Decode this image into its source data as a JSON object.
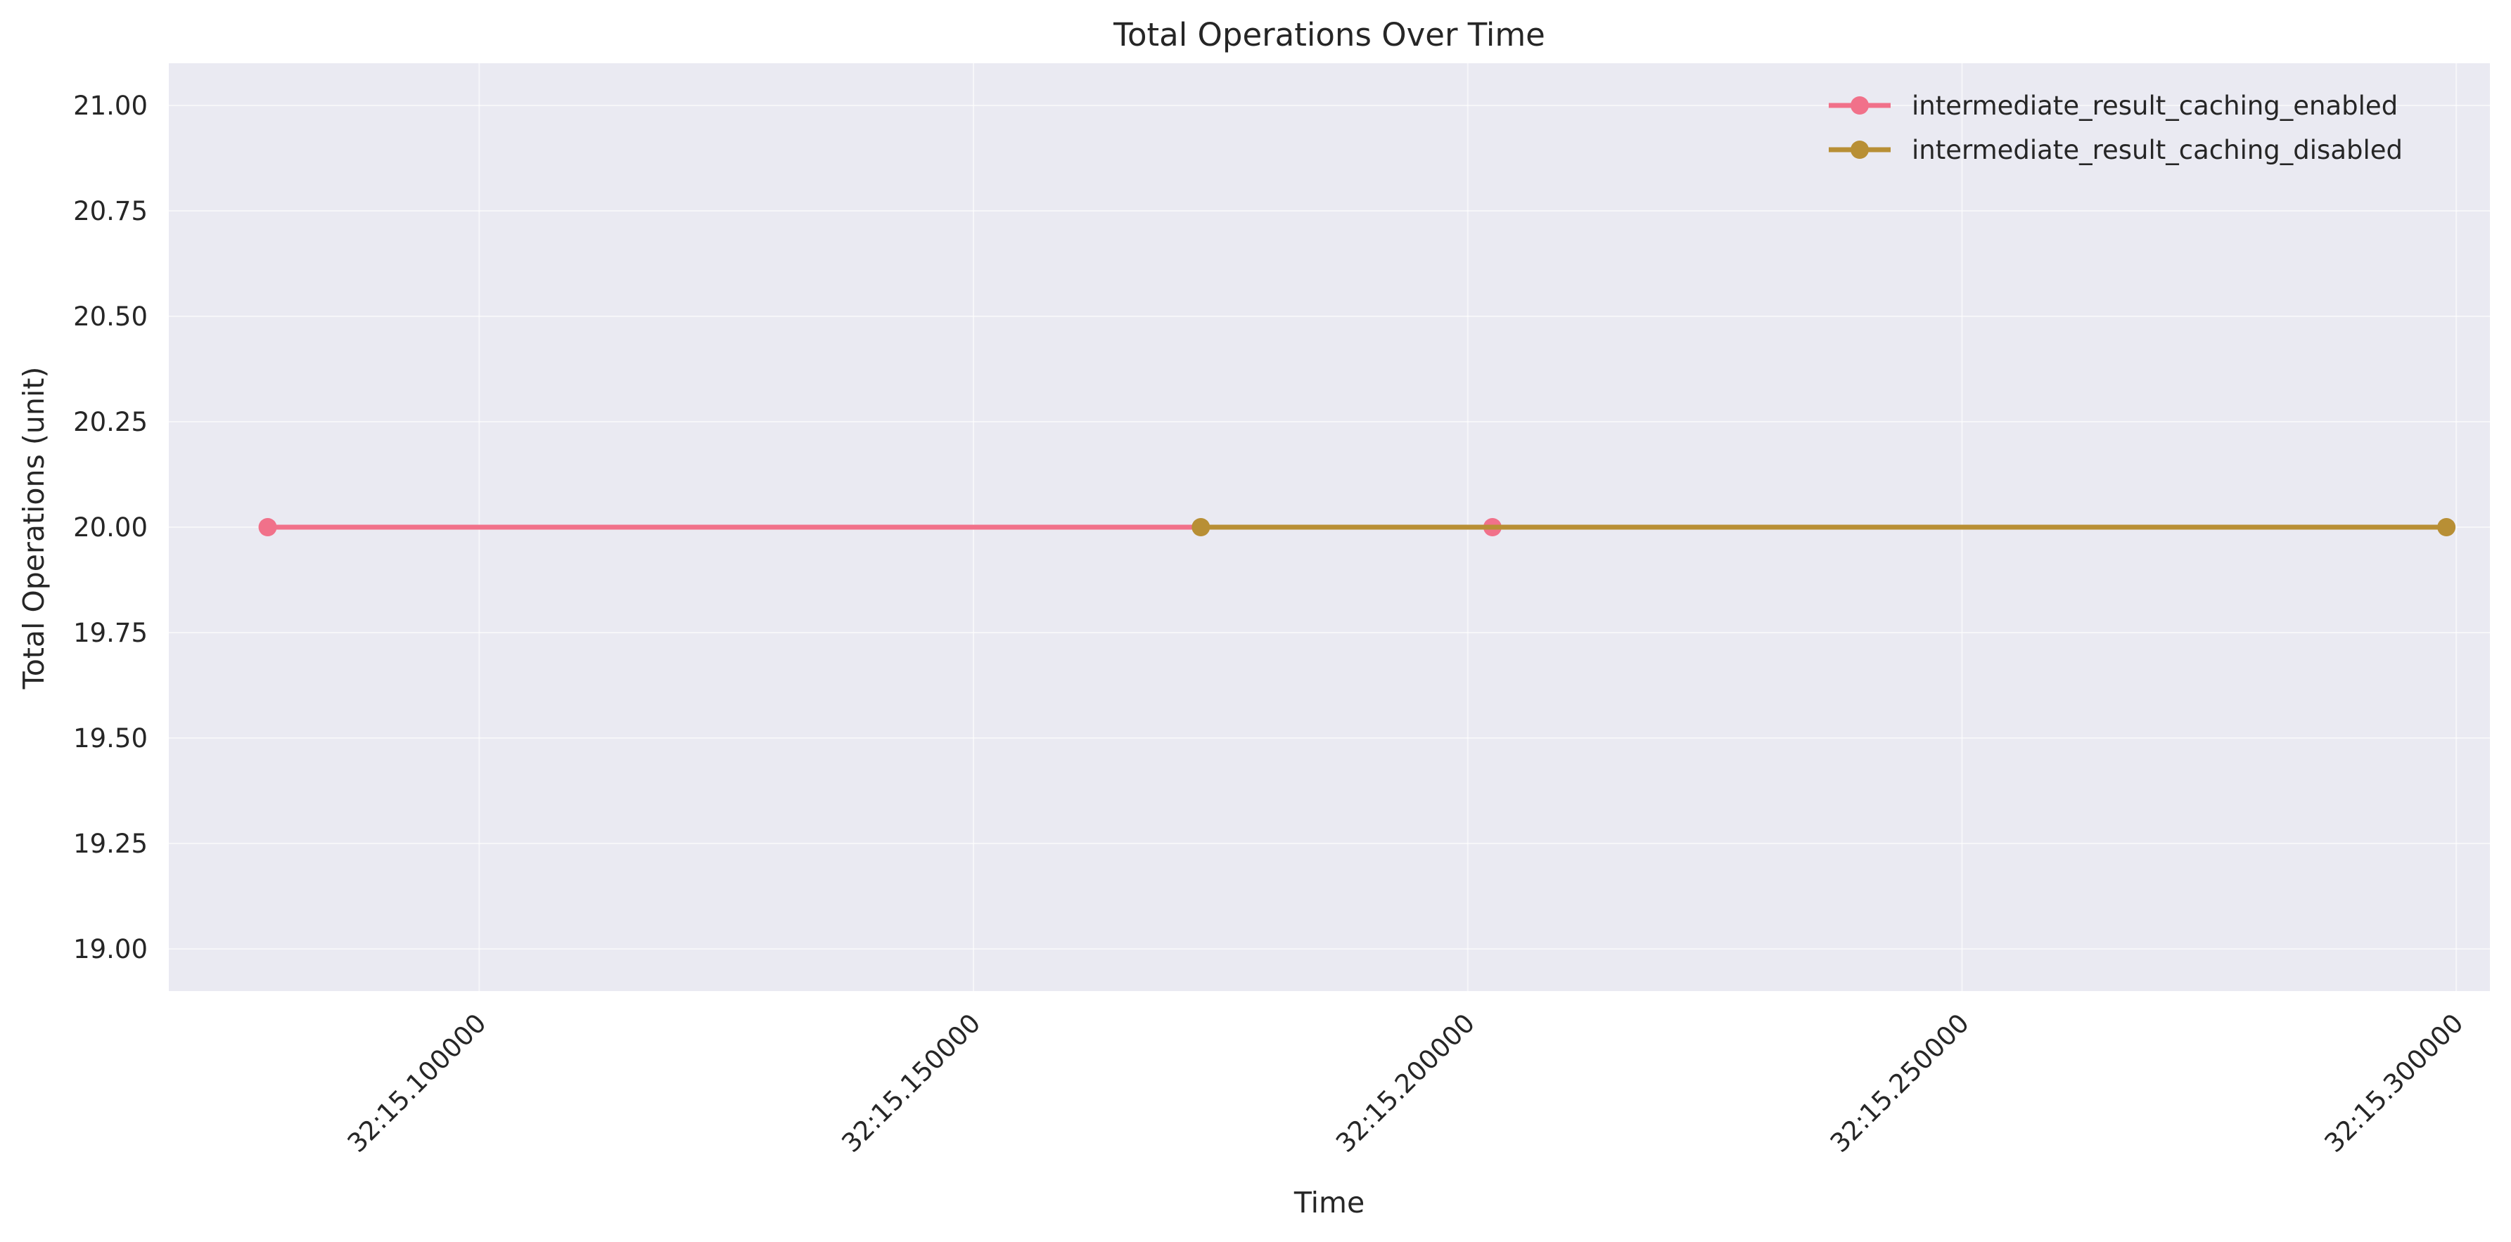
{
  "chart_data": {
    "type": "line",
    "title": "Total Operations Over Time",
    "xlabel": "Time",
    "ylabel": "Total Operations (unit)",
    "x_unit": "seconds",
    "x_ticks": [
      {
        "value": 15.1,
        "label": "32:15.100000"
      },
      {
        "value": 15.15,
        "label": "32:15.150000"
      },
      {
        "value": 15.2,
        "label": "32:15.200000"
      },
      {
        "value": 15.25,
        "label": "32:15.250000"
      },
      {
        "value": 15.3,
        "label": "32:15.300000"
      }
    ],
    "y_ticks": [
      {
        "value": 19.0,
        "label": "19.00"
      },
      {
        "value": 19.25,
        "label": "19.25"
      },
      {
        "value": 19.5,
        "label": "19.50"
      },
      {
        "value": 19.75,
        "label": "19.75"
      },
      {
        "value": 20.0,
        "label": "20.00"
      },
      {
        "value": 20.25,
        "label": "20.25"
      },
      {
        "value": 20.5,
        "label": "20.50"
      },
      {
        "value": 20.75,
        "label": "20.75"
      },
      {
        "value": 21.0,
        "label": "21.00"
      }
    ],
    "xlim": [
      15.0686,
      15.3034
    ],
    "ylim": [
      18.9,
      21.1
    ],
    "grid": true,
    "legend_position": "top-right",
    "background": "#eaeaf2",
    "series": [
      {
        "name": "intermediate_result_caching_enabled",
        "color": "#f1718a",
        "points": [
          {
            "x": 15.0786,
            "y": 20
          },
          {
            "x": 15.2025,
            "y": 20
          }
        ]
      },
      {
        "name": "intermediate_result_caching_disabled",
        "color": "#b88f35",
        "points": [
          {
            "x": 15.173,
            "y": 20
          },
          {
            "x": 15.299,
            "y": 20
          }
        ]
      }
    ]
  }
}
